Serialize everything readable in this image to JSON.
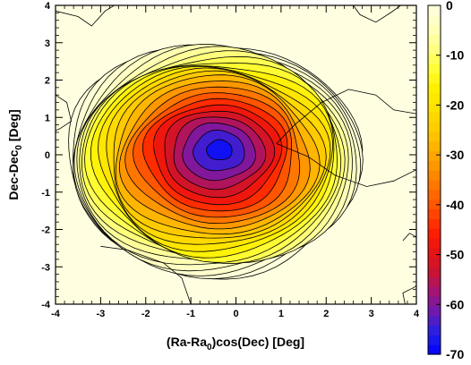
{
  "chart_data": {
    "type": "heatmap",
    "subtype": "filled contour map with black contour lines",
    "xlabel": "(Ra-Ra0)cos(Dec) [Deg]",
    "xlabel_parts": {
      "before": "(Ra-Ra",
      "sub": "0",
      "after": ")cos(Dec) [Deg]"
    },
    "ylabel": "Dec-Dec0 [Deg]",
    "ylabel_parts": {
      "before": "Dec-Dec",
      "sub": "0",
      "after": " [Deg]"
    },
    "xlim": [
      -4,
      4
    ],
    "ylim": [
      -4,
      4
    ],
    "x_ticks": [
      -4,
      -3,
      -2,
      -1,
      0,
      1,
      2,
      3,
      4
    ],
    "y_ticks": [
      -4,
      -3,
      -2,
      -1,
      0,
      1,
      2,
      3,
      4
    ],
    "x_tick_labels": [
      "-4",
      "-3",
      "-2",
      "-1",
      "0",
      "1",
      "2",
      "3",
      "4"
    ],
    "y_tick_labels": [
      "-4",
      "-3",
      "-2",
      "-1",
      "0",
      "1",
      "2",
      "3",
      "4"
    ],
    "colorbar": {
      "range": [
        -70,
        0
      ],
      "ticks": [
        0,
        -10,
        -20,
        -30,
        -40,
        -50,
        -60,
        -70
      ],
      "tick_labels": [
        "0",
        "-10",
        "-20",
        "-30",
        "-40",
        "-50",
        "-60",
        "-70"
      ],
      "colors": [
        "#0000ff",
        "#2020e6",
        "#6a1ab4",
        "#a0147a",
        "#c81432",
        "#e61414",
        "#ff1e00",
        "#ff4a00",
        "#ff6e00",
        "#ff9000",
        "#ffb000",
        "#ffcc00",
        "#ffe000",
        "#fff000",
        "#ffff3a",
        "#ffff8a",
        "#ffffbe",
        "#fffee0"
      ]
    },
    "background_color": "#fffee0",
    "peak": {
      "x": -0.35,
      "y": 0.15,
      "value": -70
    },
    "contour_levels": [
      -68,
      -64,
      -60,
      -56,
      -52,
      -48,
      -44,
      -40,
      -36,
      -32,
      -28,
      -25,
      -22,
      -19,
      -16,
      -13,
      -11,
      -9,
      -7,
      -5,
      -3.5,
      -2.2,
      -1.2,
      -0.5
    ]
  }
}
